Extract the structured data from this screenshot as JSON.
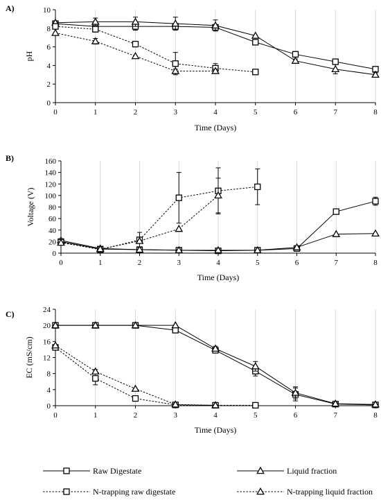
{
  "colors": {
    "line": "#000000",
    "grid": "#d9d9d9",
    "background": "#ffffff"
  },
  "chart_data": [
    {
      "panel": "A)",
      "type": "line",
      "xlabel": "Time (Days)",
      "ylabel": "pH",
      "xlim": [
        0,
        8
      ],
      "ylim": [
        0,
        10
      ],
      "xticks": [
        0,
        1,
        2,
        3,
        4,
        5,
        6,
        7,
        8
      ],
      "yticks": [
        0,
        2,
        4,
        6,
        8,
        10
      ],
      "grid": "vertical",
      "series": [
        {
          "name": "Raw Digestate",
          "marker": "square",
          "dash": "solid",
          "x": [
            0,
            1,
            2,
            3,
            4,
            5,
            6,
            7,
            8
          ],
          "y": [
            8.5,
            8.2,
            8.2,
            8.2,
            8.1,
            6.5,
            5.2,
            4.4,
            3.6
          ],
          "err": [
            0,
            0.3,
            0.4,
            0.3,
            0.3,
            0,
            0.3,
            0.2,
            0.2
          ]
        },
        {
          "name": "Liquid fraction",
          "marker": "triangle",
          "dash": "solid",
          "x": [
            0,
            1,
            2,
            3,
            4,
            5,
            6,
            7,
            8
          ],
          "y": [
            8.6,
            8.7,
            8.7,
            8.5,
            8.3,
            7.2,
            4.5,
            3.6,
            3.0
          ],
          "err": [
            0,
            0.4,
            0.5,
            0.7,
            0.6,
            0,
            0.2,
            0.5,
            0.2
          ]
        },
        {
          "name": "N-trapping raw digestate",
          "marker": "square",
          "dash": "dashed",
          "x": [
            0,
            1,
            2,
            3,
            4,
            5
          ],
          "y": [
            8.2,
            7.9,
            6.3,
            4.2,
            3.7,
            3.3
          ],
          "err": [
            0,
            0.3,
            0.3,
            1.2,
            0.5,
            0
          ]
        },
        {
          "name": "N-trapping liquid fraction",
          "marker": "triangle",
          "dash": "dashed",
          "x": [
            0,
            1,
            2,
            3,
            4
          ],
          "y": [
            7.5,
            6.6,
            5.0,
            3.4,
            3.4
          ],
          "err": [
            0,
            0.3,
            0,
            0.2,
            0.2
          ]
        }
      ]
    },
    {
      "panel": "B)",
      "type": "line",
      "xlabel": "Time (Days)",
      "ylabel": "Voltage (V)",
      "xlim": [
        0,
        8
      ],
      "ylim": [
        0,
        160
      ],
      "xticks": [
        0,
        1,
        2,
        3,
        4,
        5,
        6,
        7,
        8
      ],
      "yticks": [
        0,
        20,
        40,
        60,
        80,
        100,
        120,
        140,
        160
      ],
      "grid": "vertical",
      "series": [
        {
          "name": "Raw Digestate",
          "marker": "square",
          "dash": "solid",
          "x": [
            0,
            1,
            2,
            3,
            4,
            5,
            6,
            7,
            8
          ],
          "y": [
            20,
            7,
            6,
            5,
            4,
            5,
            8,
            72,
            90
          ],
          "err": [
            0,
            0,
            0,
            0,
            0,
            0,
            0,
            0,
            7
          ]
        },
        {
          "name": "Liquid fraction",
          "marker": "triangle",
          "dash": "solid",
          "x": [
            0,
            1,
            2,
            3,
            4,
            5,
            6,
            7,
            8
          ],
          "y": [
            22,
            8,
            6,
            5,
            5,
            5,
            10,
            33,
            34
          ],
          "err": [
            0,
            0,
            0,
            0,
            0,
            0,
            0,
            0,
            0
          ]
        },
        {
          "name": "N-trapping raw digestate",
          "marker": "square",
          "dash": "dashed",
          "x": [
            0,
            1,
            2,
            3,
            4,
            5
          ],
          "y": [
            19,
            6,
            23,
            96,
            108,
            115
          ],
          "err": [
            0,
            0,
            13,
            44,
            40,
            31
          ]
        },
        {
          "name": "N-trapping liquid fraction",
          "marker": "triangle",
          "dash": "dashed",
          "x": [
            0,
            1,
            2,
            3,
            4
          ],
          "y": [
            18,
            7,
            21,
            42,
            100
          ],
          "err": [
            0,
            0,
            0,
            0,
            30
          ]
        }
      ]
    },
    {
      "panel": "C)",
      "type": "line",
      "xlabel": "Time (Days)",
      "ylabel": "EC (mS/cm)",
      "xlim": [
        0,
        8
      ],
      "ylim": [
        0,
        24
      ],
      "xticks": [
        0,
        1,
        2,
        3,
        4,
        5,
        6,
        7,
        8
      ],
      "yticks": [
        0,
        4,
        8,
        12,
        16,
        20,
        24
      ],
      "grid": "vertical",
      "series": [
        {
          "name": "Raw Digestate",
          "marker": "square",
          "dash": "solid",
          "x": [
            0,
            1,
            2,
            3,
            4,
            5,
            6,
            7,
            8
          ],
          "y": [
            20,
            20,
            20,
            18.8,
            13.8,
            8.6,
            2.8,
            0.4,
            0.2
          ],
          "err": [
            0,
            0,
            0,
            0,
            0.6,
            1.2,
            1.6,
            0.3,
            0
          ]
        },
        {
          "name": "Liquid fraction",
          "marker": "triangle",
          "dash": "solid",
          "x": [
            0,
            1,
            2,
            3,
            4,
            5,
            6,
            7,
            8
          ],
          "y": [
            20,
            20,
            20,
            20,
            14.2,
            9.8,
            3.2,
            0.5,
            0.3
          ],
          "err": [
            0,
            0,
            0,
            0,
            0.6,
            1.2,
            1.5,
            0.2,
            0
          ]
        },
        {
          "name": "N-trapping raw digestate",
          "marker": "square",
          "dash": "dashed",
          "x": [
            0,
            1,
            2,
            3,
            4,
            5
          ],
          "y": [
            14.5,
            6.8,
            1.8,
            0.2,
            0.1,
            0.1
          ],
          "err": [
            0,
            1.6,
            0,
            0,
            0,
            0
          ]
        },
        {
          "name": "N-trapping liquid fraction",
          "marker": "triangle",
          "dash": "dashed",
          "x": [
            0,
            1,
            2,
            3,
            4
          ],
          "y": [
            15,
            8.5,
            4.2,
            0.3,
            0.1
          ],
          "err": [
            0,
            0.5,
            0,
            0,
            0
          ]
        }
      ]
    }
  ],
  "legend": {
    "placement": "bottom",
    "entries": [
      {
        "label": "Raw Digestate",
        "marker": "square",
        "dash": "solid"
      },
      {
        "label": "Liquid fraction",
        "marker": "triangle",
        "dash": "solid"
      },
      {
        "label": "N-trapping raw digestate",
        "marker": "square",
        "dash": "dashed"
      },
      {
        "label": "N-trapping liquid fraction",
        "marker": "triangle",
        "dash": "dashed"
      }
    ]
  }
}
